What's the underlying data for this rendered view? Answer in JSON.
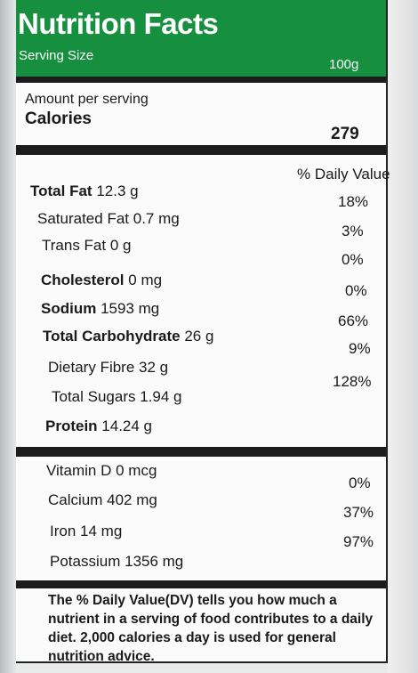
{
  "header": {
    "title": "Nutrition Facts",
    "serving_size_label": "Serving Size",
    "serving_size_value": "100g"
  },
  "calories": {
    "amount_per_serving": "Amount per serving",
    "label": "Calories",
    "value": "279"
  },
  "daily_value_heading": "% Daily Value",
  "nutrients": [
    {
      "name": "Total Fat",
      "amount": "12.3 g",
      "dv": "18%",
      "bold": true
    },
    {
      "name": "Saturated Fat",
      "amount": "0.7 mg",
      "dv": "3%",
      "bold": false
    },
    {
      "name": "Trans Fat",
      "amount": "0 g",
      "dv": "0%",
      "bold": false
    },
    {
      "name": "Cholesterol",
      "amount": "0 mg",
      "dv": "0%",
      "bold": true
    },
    {
      "name": "Sodium",
      "amount": "1593 mg",
      "dv": "66%",
      "bold": true
    },
    {
      "name": "Total Carbohydrate",
      "amount": "26 g",
      "dv": "9%",
      "bold": true
    },
    {
      "name": "Dietary Fibre",
      "amount": "32 g",
      "dv": "128%",
      "bold": false
    },
    {
      "name": "Total Sugars",
      "amount": "1.94 g",
      "dv": "",
      "bold": false
    },
    {
      "name": "Protein",
      "amount": "14.24 g",
      "dv": "",
      "bold": true
    }
  ],
  "vitamins": [
    {
      "name": "Vitamin D",
      "amount": "0 mcg",
      "dv": "0%"
    },
    {
      "name": "Calcium",
      "amount": "402 mg",
      "dv": "37%"
    },
    {
      "name": "Iron",
      "amount": "14 mg",
      "dv": "97%"
    },
    {
      "name": "Potassium",
      "amount": "1356 mg",
      "dv": ""
    }
  ],
  "footer": "The % Daily Value(DV) tells you how much a nutrient in a serving of food contributes to a daily diet. 2,000 calories a day is used for general nutrition advice.",
  "colors": {
    "header_bg": "#16903e",
    "rule": "#1c1c1c"
  }
}
